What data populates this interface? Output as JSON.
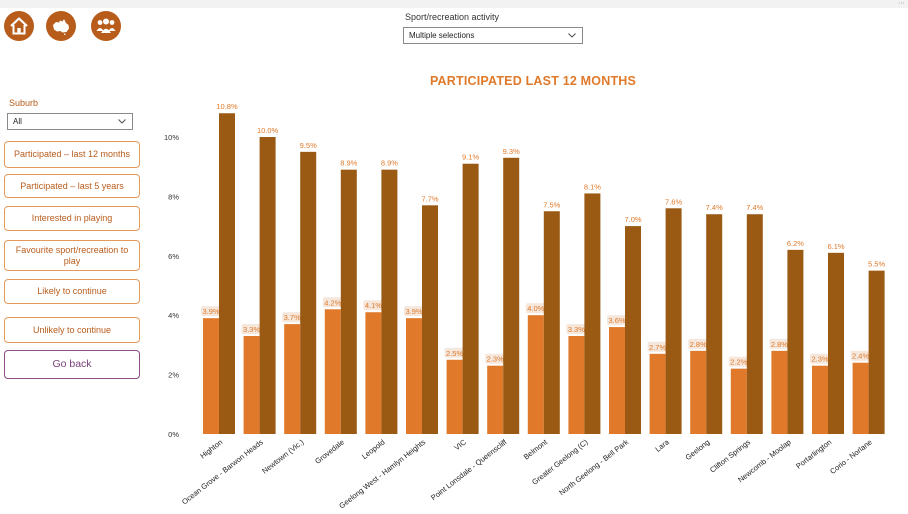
{
  "nav": {
    "icons": [
      {
        "name": "home-icon"
      },
      {
        "name": "australia-map-icon"
      },
      {
        "name": "group-icon"
      }
    ]
  },
  "filters": {
    "sport_label": "Sport/recreation activity",
    "sport_value": "Multiple selections",
    "suburb_label": "Suburb",
    "suburb_value": "All"
  },
  "sidebar": {
    "buttons": [
      {
        "label": "Participated – last 12 months"
      },
      {
        "label": "Participated – last 5 years"
      },
      {
        "label": "Interested in playing"
      },
      {
        "label": "Favourite sport/recreation to play"
      },
      {
        "label": "Likely to continue"
      },
      {
        "label": "Unlikely to continue"
      }
    ],
    "back_label": "Go back"
  },
  "colors": {
    "accent": "#b85c1c",
    "series_light": "#e07a2a",
    "series_dark": "#9a5a14",
    "title": "#e07a2a",
    "back_button": "#7a3f78"
  },
  "chart_data": {
    "type": "bar",
    "title": "PARTICIPATED LAST 12 MONTHS",
    "xlabel": "",
    "ylabel": "",
    "ylim": [
      0,
      10.8
    ],
    "y_ticks": [
      0,
      2,
      4,
      6,
      8,
      10
    ],
    "y_tick_labels": [
      "0%",
      "2%",
      "4%",
      "6%",
      "8%",
      "10%"
    ],
    "grid": false,
    "legend": "none",
    "categories": [
      "Highton",
      "Ocean Grove - Barwon Heads",
      "Newtown (Vic.)",
      "Grovedale",
      "Leopold",
      "Geelong West - Hamlyn Heights",
      "VIC",
      "Point Lonsdale - Queenscliff",
      "Belmont",
      "Greater Geelong (C)",
      "North Geelong - Bell Park",
      "Lara",
      "Geelong",
      "Clifton Springs",
      "Newcomb - Moolap",
      "Portarlington",
      "Corio - Norlane"
    ],
    "series": [
      {
        "values": [
          3.9,
          3.3,
          3.7,
          4.2,
          4.1,
          3.9,
          2.5,
          2.3,
          4.0,
          3.3,
          3.6,
          2.7,
          2.8,
          2.2,
          2.8,
          2.3,
          2.4
        ],
        "labels": [
          "3.9%",
          "3.3%",
          "3.7%",
          "4.2%",
          "4.1%",
          "3.9%",
          "2.5%",
          "2.3%",
          "4.0%",
          "3.3%",
          "3.6%",
          "2.7%",
          "2.8%",
          "2.2%",
          "2.8%",
          "2.3%",
          "2.4%"
        ]
      },
      {
        "values": [
          10.8,
          10.0,
          9.5,
          8.9,
          8.9,
          7.7,
          9.1,
          9.3,
          7.5,
          8.1,
          7.0,
          7.6,
          7.4,
          7.4,
          6.2,
          6.1,
          5.5
        ],
        "labels": [
          "10.8%",
          "10.0%",
          "9.5%",
          "8.9%",
          "8.9%",
          "7.7%",
          "9.1%",
          "9.3%",
          "7.5%",
          "8.1%",
          "7.0%",
          "7.6%",
          "7.4%",
          "7.4%",
          "6.2%",
          "6.1%",
          "5.5%"
        ]
      }
    ]
  }
}
